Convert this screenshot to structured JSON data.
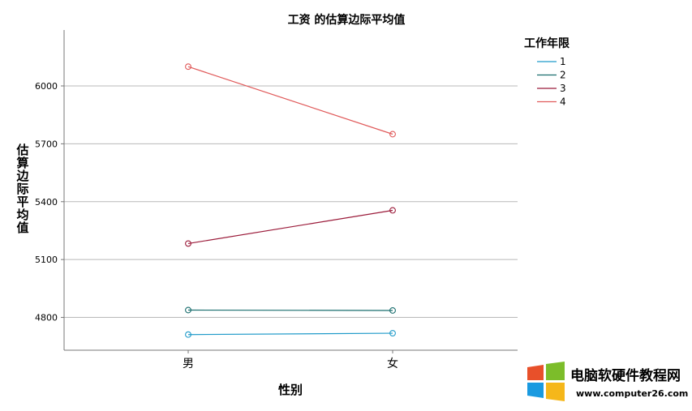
{
  "chart_data": {
    "type": "line",
    "title": "工资 的估算边际平均值",
    "xlabel": "性别",
    "ylabel": "估算边际平均值",
    "categories": [
      "男",
      "女"
    ],
    "ylim": [
      4630,
      6290
    ],
    "yticks": [
      4800,
      5100,
      5400,
      5700,
      6000
    ],
    "grid": "horizontal",
    "legend": {
      "title": "工作年限",
      "position": "top-right"
    },
    "marker": "open-circle",
    "series": [
      {
        "name": "1",
        "values": [
          4711,
          4718
        ],
        "color": "#1f9ac9"
      },
      {
        "name": "2",
        "values": [
          4838,
          4836
        ],
        "color": "#1a6e6e"
      },
      {
        "name": "3",
        "values": [
          5183,
          5355
        ],
        "color": "#9b1b3a"
      },
      {
        "name": "4",
        "values": [
          6100,
          5750
        ],
        "color": "#e05a5a"
      }
    ]
  },
  "watermark": {
    "text": "电脑软硬件教程网",
    "url_text": "www.computer26.com",
    "colors": {
      "text": "#1a73c9",
      "url": "#1a73c9"
    }
  }
}
